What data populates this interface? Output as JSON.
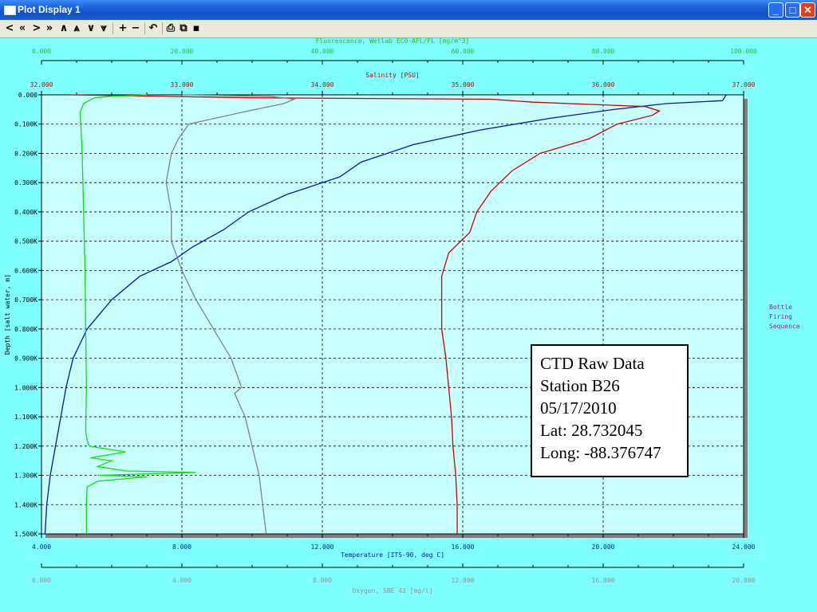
{
  "window": {
    "title": "Plot Display 1"
  },
  "toolbar": [
    {
      "name": "first-page-button",
      "glyph": "<"
    },
    {
      "name": "prev-fast-button",
      "glyph": "«"
    },
    {
      "name": "next-button",
      "glyph": ">"
    },
    {
      "name": "next-fast-button",
      "glyph": "»"
    },
    {
      "name": "scroll-up-button",
      "glyph": "∧"
    },
    {
      "name": "scroll-up-fast-button",
      "glyph": "⩓"
    },
    {
      "name": "scroll-down-button",
      "glyph": "∨"
    },
    {
      "name": "scroll-down-fast-button",
      "glyph": "⩔"
    },
    {
      "name": "zoom-in-button",
      "glyph": "+"
    },
    {
      "name": "zoom-out-button",
      "glyph": "−"
    },
    {
      "name": "undo-button",
      "glyph": "↶"
    },
    {
      "name": "print-button",
      "glyph": "⎙"
    },
    {
      "name": "copy-button",
      "glyph": "⧉"
    },
    {
      "name": "save-button",
      "glyph": "▪"
    }
  ],
  "side_label": [
    "Bottle",
    "Firing",
    "Sequence"
  ],
  "note": [
    "CTD Raw Data",
    "Station B26",
    "05/17/2010",
    "Lat: 28.732045",
    "Long: -88.376747"
  ],
  "chart_data": {
    "type": "line",
    "ylabel": "Depth [salt water, m]",
    "y_ticks": [
      "0.000",
      "0.100K",
      "0.200K",
      "0.300K",
      "0.400K",
      "0.500K",
      "0.600K",
      "0.700K",
      "0.800K",
      "0.900K",
      "1.000K",
      "1.100K",
      "1.200K",
      "1.300K",
      "1.400K",
      "1.500K"
    ],
    "ylim": [
      0,
      1500
    ],
    "axes": {
      "fluorescence": {
        "label": "Fluorescence, Wetlab ECO-AFL/FL [mg/m^3]",
        "ticks": [
          "0.000",
          "20.000",
          "40.000",
          "60.000",
          "80.000",
          "100.000"
        ],
        "range": [
          0,
          100
        ],
        "color": "#20d020"
      },
      "salinity": {
        "label": "Salinity [PSU]",
        "ticks": [
          "32.000",
          "33.000",
          "34.000",
          "35.000",
          "36.000",
          "37.000"
        ],
        "range": [
          32,
          37
        ],
        "color": "#c00000"
      },
      "temperature": {
        "label": "Temperature [ITS-90, deg C]",
        "ticks": [
          "4.000",
          "8.000",
          "12.000",
          "16.000",
          "20.000",
          "24.000"
        ],
        "range": [
          4,
          24
        ],
        "color": "#1020b0"
      },
      "oxygen": {
        "label": "Oxygen, SBE 43 [mg/l]",
        "ticks": [
          "0.000",
          "4.000",
          "8.000",
          "12.000",
          "16.000",
          "20.000"
        ],
        "range": [
          0,
          20
        ],
        "color": "#909090"
      }
    },
    "series": [
      {
        "name": "Temperature",
        "axis": "temperature",
        "color": "#0018a8",
        "points": [
          [
            1,
            23.5
          ],
          [
            20,
            23.4
          ],
          [
            30,
            21.8
          ],
          [
            50,
            20.3
          ],
          [
            80,
            18.5
          ],
          [
            120,
            16.5
          ],
          [
            170,
            14.6
          ],
          [
            230,
            13.1
          ],
          [
            280,
            12.5
          ],
          [
            340,
            11.0
          ],
          [
            400,
            9.9
          ],
          [
            460,
            9.2
          ],
          [
            520,
            8.3
          ],
          [
            570,
            7.7
          ],
          [
            620,
            6.8
          ],
          [
            700,
            6.0
          ],
          [
            800,
            5.3
          ],
          [
            900,
            4.9
          ],
          [
            1000,
            4.7
          ],
          [
            1100,
            4.55
          ],
          [
            1200,
            4.4
          ],
          [
            1300,
            4.25
          ],
          [
            1400,
            4.15
          ],
          [
            1500,
            4.1
          ]
        ]
      },
      {
        "name": "Salinity",
        "axis": "salinity",
        "color": "#d00000",
        "points": [
          [
            0,
            32.2
          ],
          [
            10,
            33.5
          ],
          [
            15,
            35.2
          ],
          [
            25,
            35.5
          ],
          [
            40,
            36.3
          ],
          [
            55,
            36.4
          ],
          [
            70,
            36.35
          ],
          [
            100,
            36.1
          ],
          [
            150,
            35.9
          ],
          [
            200,
            35.55
          ],
          [
            260,
            35.35
          ],
          [
            330,
            35.2
          ],
          [
            400,
            35.1
          ],
          [
            470,
            35.05
          ],
          [
            540,
            34.9
          ],
          [
            620,
            34.85
          ],
          [
            700,
            34.85
          ],
          [
            800,
            34.85
          ],
          [
            900,
            34.88
          ],
          [
            1000,
            34.9
          ],
          [
            1100,
            34.92
          ],
          [
            1200,
            34.93
          ],
          [
            1300,
            34.95
          ],
          [
            1400,
            34.96
          ],
          [
            1500,
            34.96
          ]
        ]
      },
      {
        "name": "Fluorescence",
        "axis": "fluorescence",
        "color": "#10e010",
        "points": [
          [
            0,
            15
          ],
          [
            2,
            13
          ],
          [
            5,
            10
          ],
          [
            10,
            7.5
          ],
          [
            30,
            6
          ],
          [
            60,
            5.5
          ],
          [
            100,
            5.6
          ],
          [
            200,
            5.8
          ],
          [
            400,
            6
          ],
          [
            600,
            6.2
          ],
          [
            800,
            6.3
          ],
          [
            1000,
            6.4
          ],
          [
            1150,
            6.3
          ],
          [
            1180,
            6.5
          ],
          [
            1200,
            6.8
          ],
          [
            1220,
            12
          ],
          [
            1240,
            7
          ],
          [
            1250,
            10
          ],
          [
            1270,
            8
          ],
          [
            1285,
            12
          ],
          [
            1290,
            22
          ],
          [
            1300,
            8
          ],
          [
            1305,
            15
          ],
          [
            1320,
            8
          ],
          [
            1340,
            6.5
          ],
          [
            1400,
            6.4
          ],
          [
            1500,
            6.4
          ]
        ]
      },
      {
        "name": "Oxygen",
        "axis": "oxygen",
        "color": "#808080",
        "points": [
          [
            0,
            4
          ],
          [
            5,
            6.5
          ],
          [
            15,
            7.2
          ],
          [
            30,
            6.9
          ],
          [
            60,
            5.7
          ],
          [
            100,
            4.2
          ],
          [
            150,
            3.9
          ],
          [
            200,
            3.7
          ],
          [
            300,
            3.55
          ],
          [
            400,
            3.7
          ],
          [
            500,
            3.7
          ],
          [
            600,
            4.0
          ],
          [
            700,
            4.4
          ],
          [
            800,
            4.9
          ],
          [
            900,
            5.4
          ],
          [
            1000,
            5.7
          ],
          [
            1020,
            5.5
          ],
          [
            1100,
            5.8
          ],
          [
            1200,
            6.0
          ],
          [
            1300,
            6.2
          ],
          [
            1400,
            6.3
          ],
          [
            1500,
            6.4
          ]
        ]
      }
    ]
  }
}
